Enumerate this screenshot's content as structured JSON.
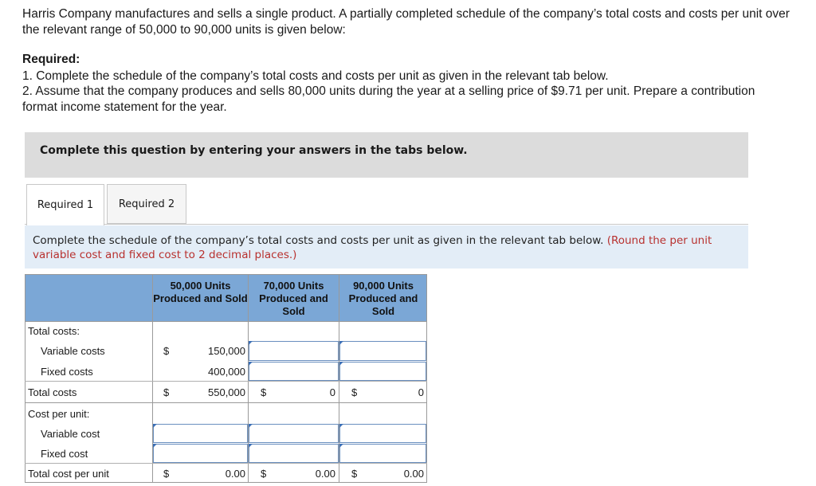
{
  "intro": "Harris Company manufactures and sells a single product. A partially completed schedule of the company’s total costs and costs per unit over the relevant range of 50,000 to 90,000 units is given below:",
  "required": {
    "title": "Required:",
    "item1": "1. Complete the schedule of the company’s total costs and costs per unit as given in the relevant tab below.",
    "item2": "2. Assume that the company produces and sells 80,000 units during the year at a selling price of $9.71 per unit. Prepare a contribution format income statement for the year."
  },
  "banner": "Complete this question by entering your answers in the tabs below.",
  "tabs": [
    {
      "label": "Required 1",
      "active": true
    },
    {
      "label": "Required 2",
      "active": false
    }
  ],
  "instruction": {
    "text": "Complete the schedule of the company’s total costs and costs per unit as given in the relevant tab below.",
    "note": "(Round the per unit variable cost and fixed cost to 2 decimal places.)"
  },
  "table": {
    "headers": [
      "50,000 Units Produced and Sold",
      "70,000 Units Produced and Sold",
      "90,000 Units Produced and Sold"
    ],
    "total_costs_heading": "Total costs:",
    "variable_costs_label": "Variable costs",
    "fixed_costs_label": "Fixed costs",
    "total_costs_label": "Total costs",
    "cost_per_unit_heading": "Cost per unit:",
    "variable_cost_label": "Variable cost",
    "fixed_cost_label": "Fixed cost",
    "total_cost_per_unit_label": "Total cost per unit",
    "currency": "$",
    "col1": {
      "variable_costs": "150,000",
      "fixed_costs": "400,000",
      "total_costs": "550,000",
      "total_cost_per_unit": "0.00"
    },
    "col2": {
      "total_costs": "0",
      "total_cost_per_unit": "0.00"
    },
    "col3": {
      "total_costs": "0",
      "total_cost_per_unit": "0.00"
    }
  },
  "colors": {
    "header_blue": "#7ba7d6",
    "instruction_bg": "#e3edf7",
    "note_red": "#b8312f",
    "banner_gray": "#dcdcdc"
  }
}
